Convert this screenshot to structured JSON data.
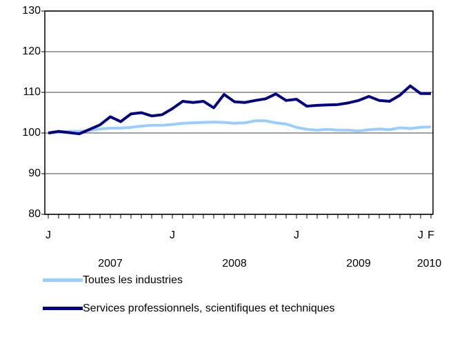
{
  "chart_data": {
    "type": "line",
    "categories": [
      "J",
      null,
      null,
      null,
      null,
      null,
      null,
      null,
      null,
      null,
      null,
      null,
      "J",
      null,
      null,
      null,
      null,
      null,
      null,
      null,
      null,
      null,
      null,
      null,
      "J",
      null,
      null,
      null,
      null,
      null,
      null,
      null,
      null,
      null,
      null,
      null,
      "J",
      "F"
    ],
    "years": [
      "2007",
      "2008",
      "2009",
      "2010"
    ],
    "series": [
      {
        "name": "Toutes les industries",
        "color": "#99ccff",
        "values": [
          100,
          100.2,
          100.4,
          100.4,
          100.6,
          101,
          101.2,
          101.2,
          101.4,
          101.7,
          101.9,
          101.9,
          102.1,
          102.4,
          102.5,
          102.6,
          102.7,
          102.6,
          102.4,
          102.5,
          103,
          103,
          102.5,
          102.2,
          101.4,
          100.9,
          100.7,
          100.9,
          100.7,
          100.7,
          100.5,
          100.8,
          101,
          100.8,
          101.3,
          101.1,
          101.4,
          101.5
        ]
      },
      {
        "name": "Services professionnels, scientifiques et techniques",
        "color": "#000080",
        "values": [
          100,
          100.4,
          100.1,
          99.8,
          100.9,
          102,
          104,
          102.8,
          104.7,
          105,
          104.2,
          104.5,
          106,
          107.8,
          107.5,
          107.8,
          106.2,
          109.5,
          107.7,
          107.5,
          108,
          108.4,
          109.6,
          108,
          108.3,
          106.6,
          106.8,
          106.9,
          107,
          107.4,
          108,
          109,
          108,
          107.8,
          109.3,
          111.6,
          109.7,
          109.7
        ]
      }
    ],
    "ylim": [
      80,
      130
    ],
    "yticks": [
      80,
      90,
      100,
      110,
      120,
      130
    ],
    "grid": true
  }
}
